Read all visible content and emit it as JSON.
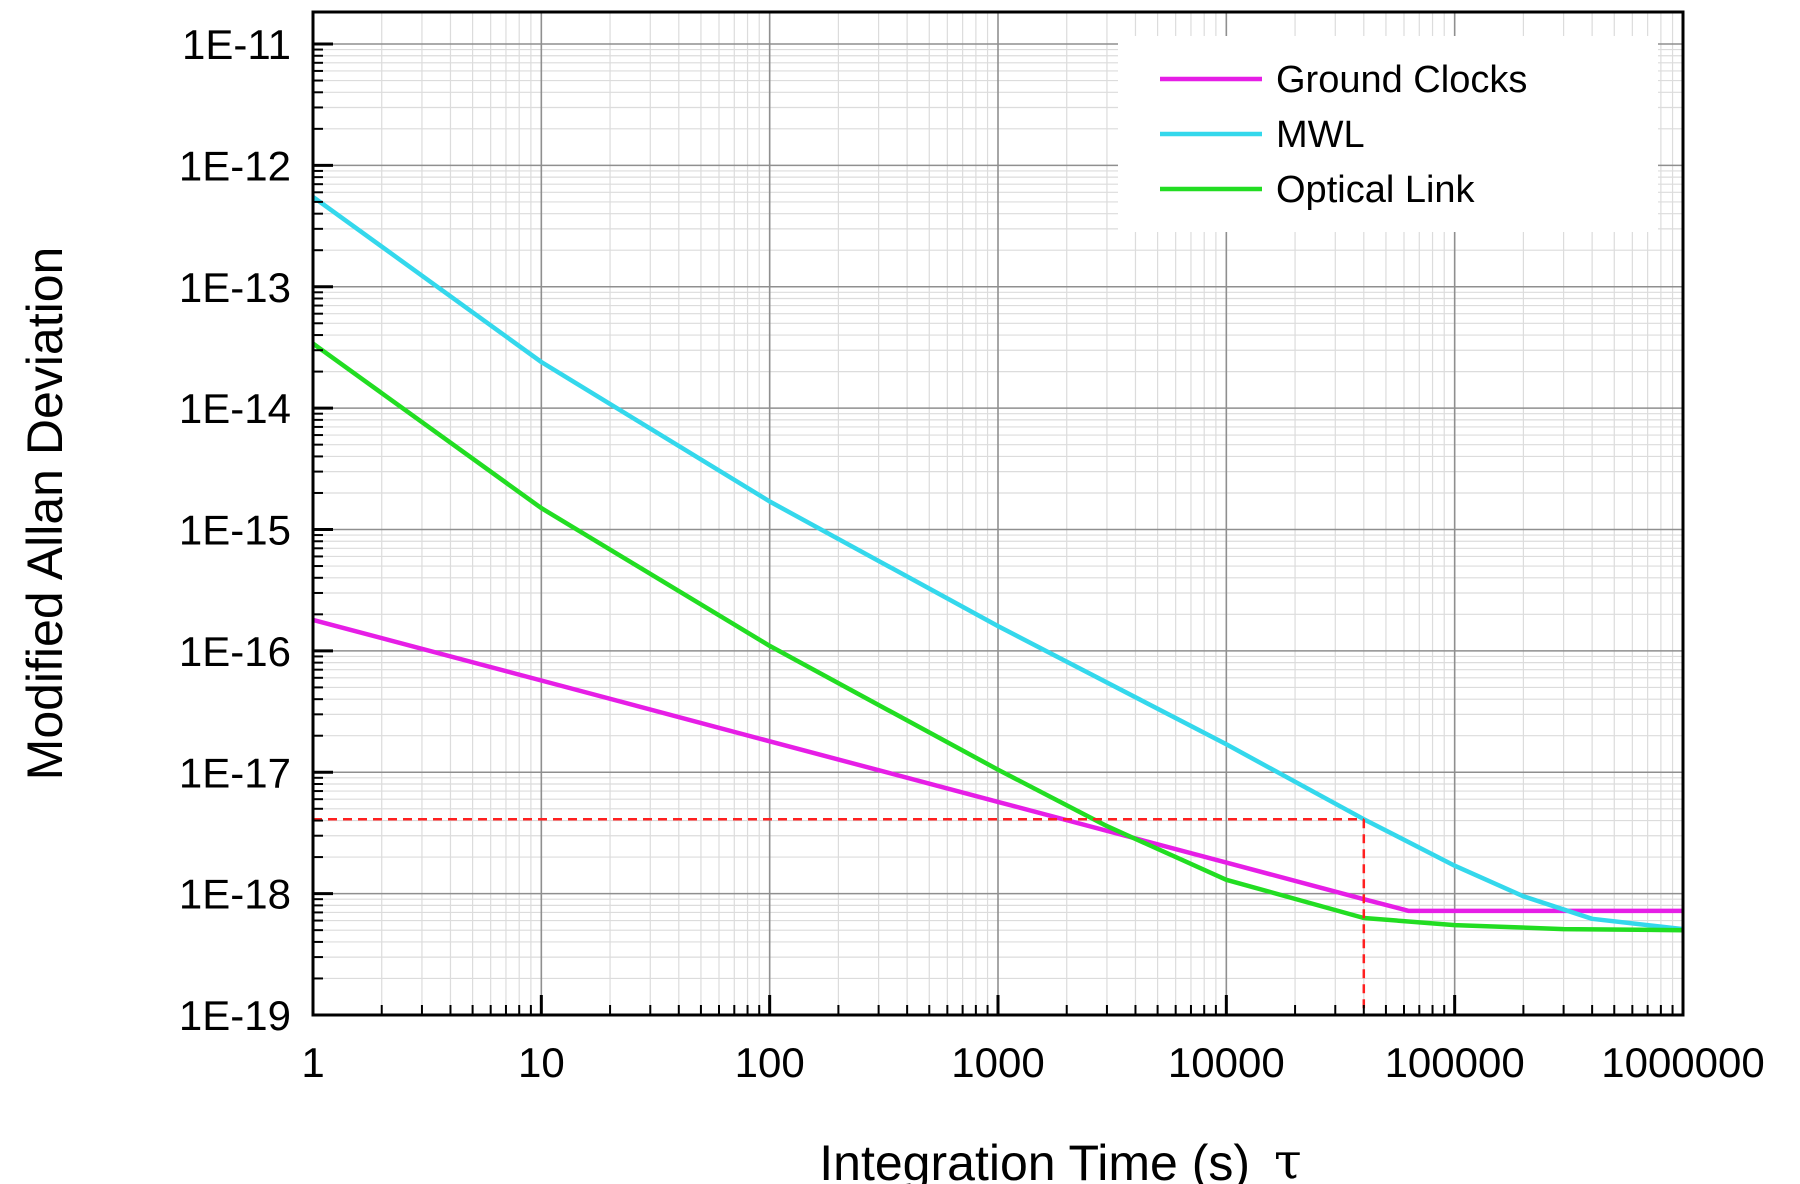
{
  "chart_data": {
    "type": "line",
    "xlabel": "Integration Time (s)",
    "xlabel_symbol": "τ",
    "ylabel": "Modified Allan Deviation",
    "x_scale": "log",
    "y_scale": "log",
    "xlim": [
      1,
      1000000
    ],
    "ylim": [
      1e-19,
      1e-11
    ],
    "x_ticks": [
      1,
      10,
      100,
      1000,
      10000,
      100000,
      1000000
    ],
    "x_tick_labels": [
      "1",
      "10",
      "100",
      "1000",
      "10000",
      "100000",
      "1000000"
    ],
    "y_ticks": [
      1e-19,
      1e-18,
      1e-17,
      1e-16,
      1e-15,
      1e-14,
      1e-13,
      1e-12,
      1e-11
    ],
    "y_tick_labels": [
      "1E-19",
      "1E-18",
      "1E-17",
      "1E-16",
      "1E-15",
      "1E-14",
      "1E-13",
      "1E-12",
      "1E-11"
    ],
    "grid": true,
    "minor_grid": true,
    "legend_position": "top-right",
    "series": [
      {
        "name": "Ground Clocks",
        "color": "#e61ee6",
        "x": [
          1,
          10,
          100,
          1000,
          10000,
          40000,
          63000,
          100000,
          1000000
        ],
        "y": [
          1.8e-16,
          5.7e-17,
          1.8e-17,
          5.7e-18,
          1.8e-18,
          9e-19,
          7.2e-19,
          7.2e-19,
          7.2e-19
        ]
      },
      {
        "name": "MWL",
        "color": "#34d8ec",
        "x": [
          1,
          10,
          100,
          1000,
          10000,
          40000,
          100000,
          200000,
          400000,
          1000000
        ],
        "y": [
          5.5e-13,
          2.4e-14,
          1.7e-15,
          1.6e-16,
          1.7e-17,
          4.1e-18,
          1.7e-18,
          9.5e-19,
          6.2e-19,
          5.1e-19
        ]
      },
      {
        "name": "Optical Link",
        "color": "#22dd22",
        "x": [
          1,
          10,
          100,
          1000,
          3000,
          10000,
          40000,
          100000,
          300000,
          1000000
        ],
        "y": [
          3.4e-14,
          1.5e-15,
          1.1e-16,
          1.05e-17,
          3.6e-18,
          1.3e-18,
          6.3e-19,
          5.5e-19,
          5.1e-19,
          5e-19
        ]
      }
    ],
    "reference_lines": {
      "color": "#ff2020",
      "style": "dashed",
      "y": 4.1e-18,
      "x": 40000
    }
  }
}
